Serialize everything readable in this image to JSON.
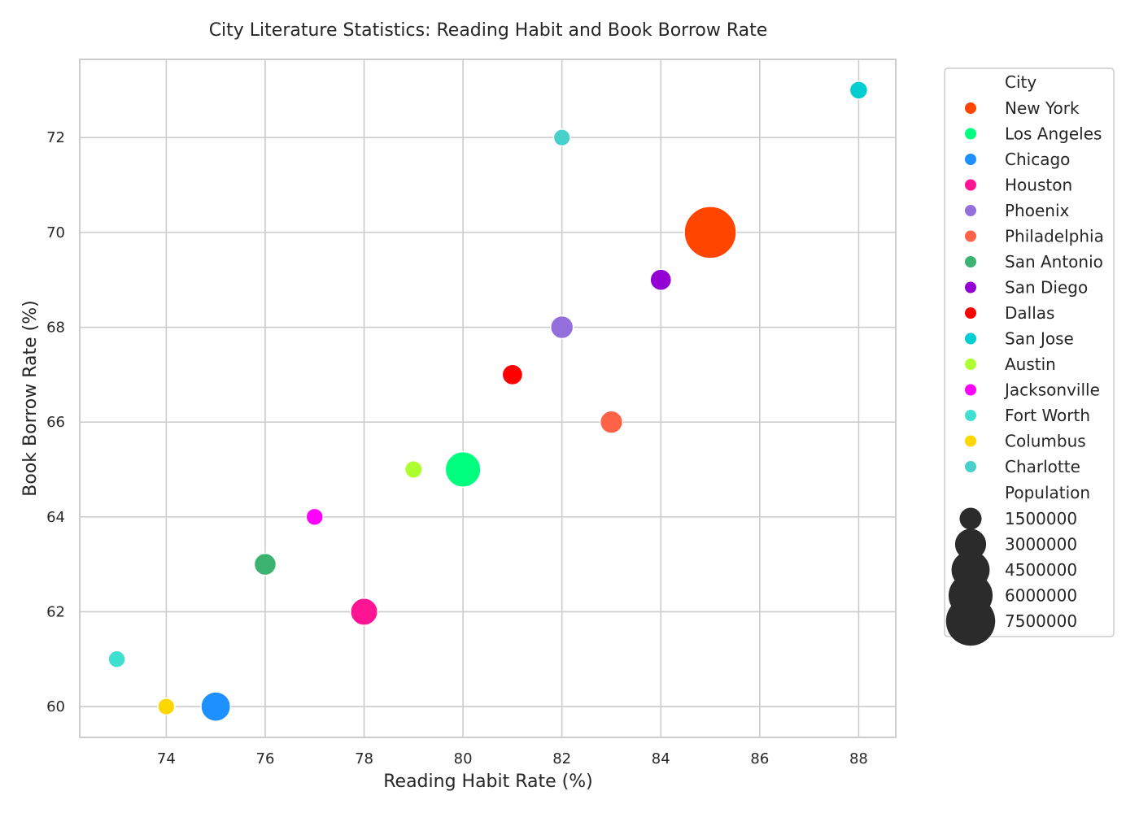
{
  "chart_data": {
    "type": "scatter",
    "title": "City Literature Statistics: Reading Habit and Book Borrow Rate",
    "xlabel": "Reading Habit Rate (%)",
    "ylabel": "Book Borrow Rate (%)",
    "xlim": [
      72.25,
      88.75
    ],
    "ylim": [
      59.35,
      73.65
    ],
    "xticks": [
      74,
      76,
      78,
      80,
      82,
      84,
      86,
      88
    ],
    "yticks": [
      60,
      62,
      64,
      66,
      68,
      70,
      72
    ],
    "grid": true,
    "legend_position": "outside right",
    "hue_title": "City",
    "size_title": "Population",
    "size_legend_values": [
      1500000,
      3000000,
      4500000,
      6000000,
      7500000
    ],
    "size_legend_labels": [
      "1500000",
      "3000000",
      "4500000",
      "6000000",
      "7500000"
    ],
    "series": [
      {
        "name": "New York",
        "color": "#ff4500",
        "x": 85,
        "y": 70,
        "size": 8400000
      },
      {
        "name": "Los Angeles",
        "color": "#00ff7f",
        "x": 80,
        "y": 65,
        "size": 3900000
      },
      {
        "name": "Chicago",
        "color": "#1e90ff",
        "x": 75,
        "y": 60,
        "size": 2700000
      },
      {
        "name": "Houston",
        "color": "#ff1493",
        "x": 78,
        "y": 62,
        "size": 2300000
      },
      {
        "name": "Phoenix",
        "color": "#9370db",
        "x": 82,
        "y": 68,
        "size": 1600000
      },
      {
        "name": "Philadelphia",
        "color": "#ff6347",
        "x": 83,
        "y": 66,
        "size": 1580000
      },
      {
        "name": "San Antonio",
        "color": "#3cb371",
        "x": 76,
        "y": 63,
        "size": 1500000
      },
      {
        "name": "San Diego",
        "color": "#9400d3",
        "x": 84,
        "y": 69,
        "size": 1400000
      },
      {
        "name": "Dallas",
        "color": "#ff0000",
        "x": 81,
        "y": 67,
        "size": 1300000
      },
      {
        "name": "San Jose",
        "color": "#00ced1",
        "x": 88,
        "y": 73,
        "size": 1000000
      },
      {
        "name": "Austin",
        "color": "#adff2f",
        "x": 79,
        "y": 65,
        "size": 950000
      },
      {
        "name": "Jacksonville",
        "color": "#ff00ff",
        "x": 77,
        "y": 64,
        "size": 900000
      },
      {
        "name": "Fort Worth",
        "color": "#40e0d0",
        "x": 73,
        "y": 61,
        "size": 900000
      },
      {
        "name": "Columbus",
        "color": "#ffd700",
        "x": 74,
        "y": 60,
        "size": 880000
      },
      {
        "name": "Charlotte",
        "color": "#48d1cc",
        "x": 82,
        "y": 72,
        "size": 870000
      }
    ]
  }
}
